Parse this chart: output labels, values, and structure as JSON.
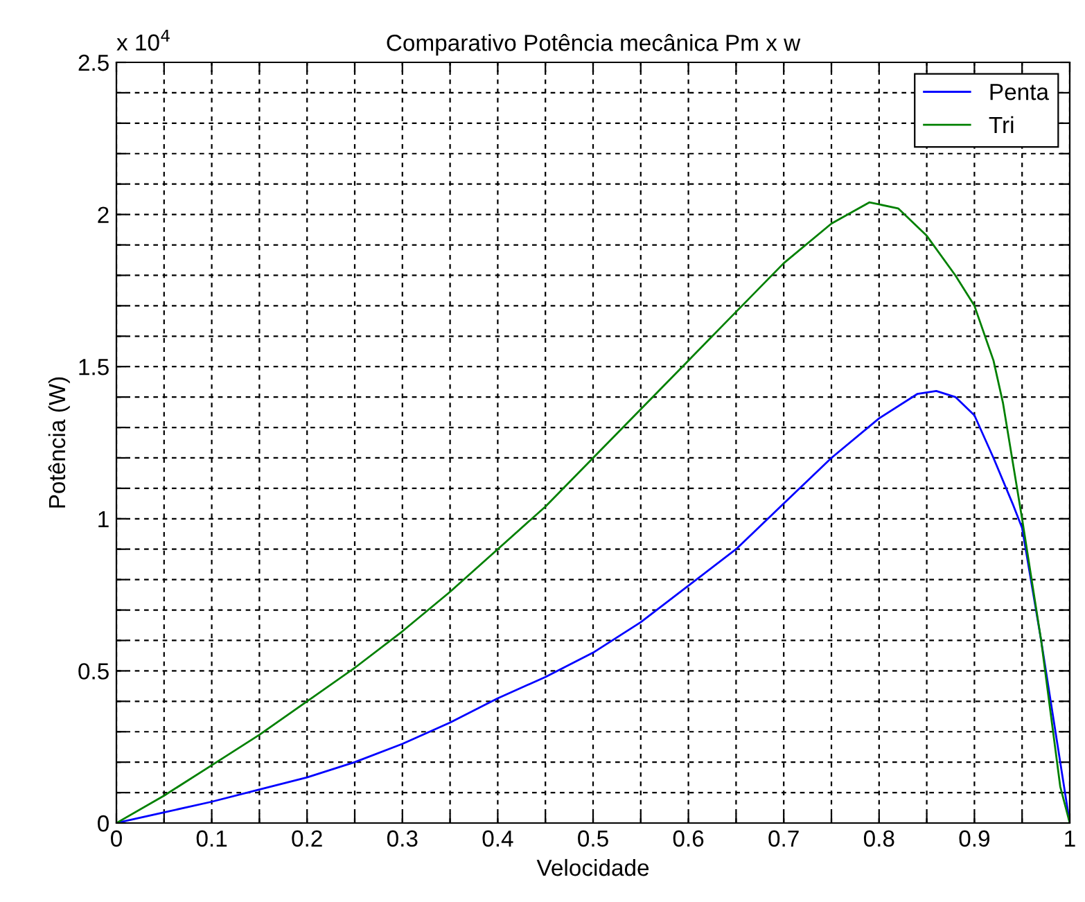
{
  "chart_data": {
    "type": "line",
    "title": "Comparativo Potência mecânica Pm x w",
    "xlabel": "Velocidade",
    "ylabel": "Potência (W)",
    "annotations": [
      "x 10$^{4}$"
    ],
    "xlim": [
      0,
      1
    ],
    "ylim": [
      0,
      2.5
    ],
    "xticks": [
      0,
      {
        "value": 0.05,
        "label": null
      },
      0.1,
      {
        "value": 0.15,
        "label": null
      },
      0.2,
      {
        "value": 0.25,
        "label": null
      },
      0.3,
      {
        "value": 0.35,
        "label": null
      },
      0.4,
      {
        "value": 0.45,
        "label": null
      },
      0.5,
      {
        "value": 0.55,
        "label": null
      },
      0.6,
      {
        "value": 0.65,
        "label": null
      },
      0.7,
      {
        "value": 0.75,
        "label": null
      },
      0.8,
      {
        "value": 0.85,
        "label": null
      },
      0.9,
      {
        "value": 0.95,
        "label": null
      },
      1
    ],
    "yticks": [
      0,
      {
        "value": 0.1,
        "label": null
      },
      {
        "value": 0.2,
        "label": null
      },
      {
        "value": 0.3,
        "label": null
      },
      {
        "value": 0.4,
        "label": null
      },
      0.5,
      {
        "value": 0.6,
        "label": null
      },
      {
        "value": 0.7,
        "label": null
      },
      {
        "value": 0.8,
        "label": null
      },
      {
        "value": 0.9,
        "label": null
      },
      1,
      {
        "value": 1.1,
        "label": null
      },
      {
        "value": 1.2,
        "label": null
      },
      {
        "value": 1.3,
        "label": null
      },
      {
        "value": 1.4,
        "label": null
      },
      1.5,
      {
        "value": 1.6,
        "label": null
      },
      {
        "value": 1.7,
        "label": null
      },
      {
        "value": 1.8,
        "label": null
      },
      {
        "value": 1.9,
        "label": null
      },
      2,
      {
        "value": 2.1,
        "label": null
      },
      {
        "value": 2.2,
        "label": null
      },
      {
        "value": 2.3,
        "label": null
      },
      {
        "value": 2.4,
        "label": null
      },
      2.5
    ],
    "grid": true,
    "legend": "top right",
    "line_style": "solid",
    "marker": "none",
    "series": [
      {
        "name": "Penta",
        "color": "#0000ff",
        "x": [
          0,
          0.05,
          0.1,
          0.15,
          0.2,
          0.25,
          0.3,
          0.35,
          0.4,
          0.45,
          0.5,
          0.55,
          0.6,
          0.65,
          0.7,
          0.75,
          0.8,
          0.84,
          0.86,
          0.88,
          0.9,
          0.92,
          0.94,
          0.95,
          0.97,
          1
        ],
        "values": [
          0,
          0.035,
          0.07,
          0.11,
          0.15,
          0.2,
          0.26,
          0.33,
          0.41,
          0.48,
          0.56,
          0.66,
          0.78,
          0.9,
          1.05,
          1.2,
          1.33,
          1.41,
          1.42,
          1.4,
          1.34,
          1.2,
          1.05,
          0.97,
          0.6,
          0
        ]
      },
      {
        "name": "Tri",
        "color": "#008000",
        "x": [
          0,
          0.05,
          0.1,
          0.15,
          0.2,
          0.25,
          0.3,
          0.35,
          0.4,
          0.45,
          0.5,
          0.55,
          0.6,
          0.65,
          0.7,
          0.75,
          0.79,
          0.82,
          0.85,
          0.88,
          0.9,
          0.92,
          0.93,
          0.95,
          0.97,
          0.99,
          1
        ],
        "values": [
          0,
          0.09,
          0.19,
          0.29,
          0.4,
          0.51,
          0.63,
          0.76,
          0.9,
          1.04,
          1.2,
          1.36,
          1.52,
          1.68,
          1.84,
          1.97,
          2.04,
          2.02,
          1.93,
          1.8,
          1.7,
          1.52,
          1.38,
          1.0,
          0.6,
          0.12,
          0
        ]
      }
    ]
  }
}
